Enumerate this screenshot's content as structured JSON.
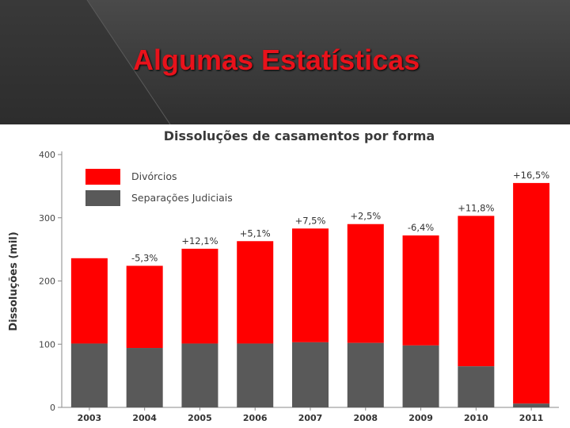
{
  "slide": {
    "title": "Algumas Estatísticas"
  },
  "colors": {
    "header_bg": "#3b3b3b",
    "title": "#e8121b",
    "divorcios": "#ff0000",
    "separacoes": "#595959"
  },
  "chart_data": {
    "type": "bar",
    "stacked": true,
    "title": "Dissoluções de casamentos por forma",
    "xlabel": "",
    "ylabel": "Dissoluções (mil)",
    "ylim": [
      0,
      400
    ],
    "yticks": [
      "0",
      "100",
      "200",
      "300",
      "400"
    ],
    "grid": false,
    "legend_position": "top-left",
    "categories": [
      "2003",
      "2004",
      "2005",
      "2006",
      "2007",
      "2008",
      "2009",
      "2010",
      "2011"
    ],
    "series": [
      {
        "name": "Separações Judiciais",
        "color": "#595959",
        "values": [
          101,
          94,
          101,
          101,
          103,
          102,
          98,
          65,
          6
        ]
      },
      {
        "name": "Divórcios",
        "color": "#ff0000",
        "values": [
          135,
          130,
          150,
          162,
          180,
          188,
          174,
          238,
          349
        ]
      }
    ],
    "data_labels": [
      "",
      "-5,3%",
      "+12,1%",
      "+5,1%",
      "+7,5%",
      "+2,5%",
      "-6,4%",
      "+11,8%",
      "+16,5%"
    ]
  }
}
